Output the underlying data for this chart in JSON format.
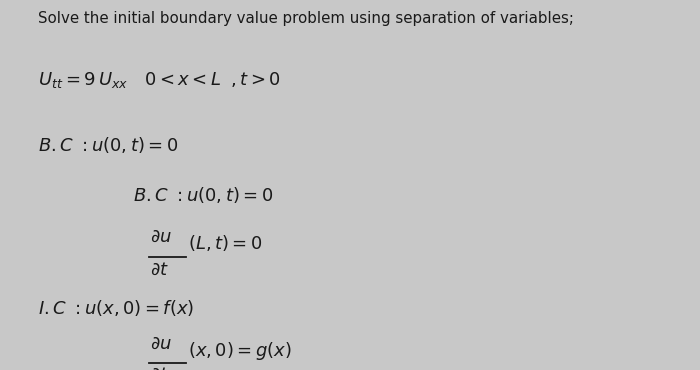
{
  "background_color": "#c8c8c8",
  "text_color": "#1a1a1a",
  "figsize": [
    7.0,
    3.7
  ],
  "dpi": 100,
  "title": "Solve the initial boundary value problem using separation of variables;",
  "pde": "$U_{tt} = 9\\,U_{xx}\\quad 0<x<L\\;\\;,t>0$",
  "bc1": "$B.C\\ :u(0,t)=0$",
  "bc2": "$B.C\\ :u(0,t)=0$",
  "frac_num_1": "$\\partial u$",
  "frac_den_1": "$\\partial t$",
  "frac_eq_1": "$(L,t)=0$",
  "ic1": "$I.C\\ :u(x,0)=f(x)$",
  "frac_num_2": "$\\partial u$",
  "frac_den_2": "$\\partial t$",
  "frac_eq_2": "$(x,0)=g(x)$"
}
